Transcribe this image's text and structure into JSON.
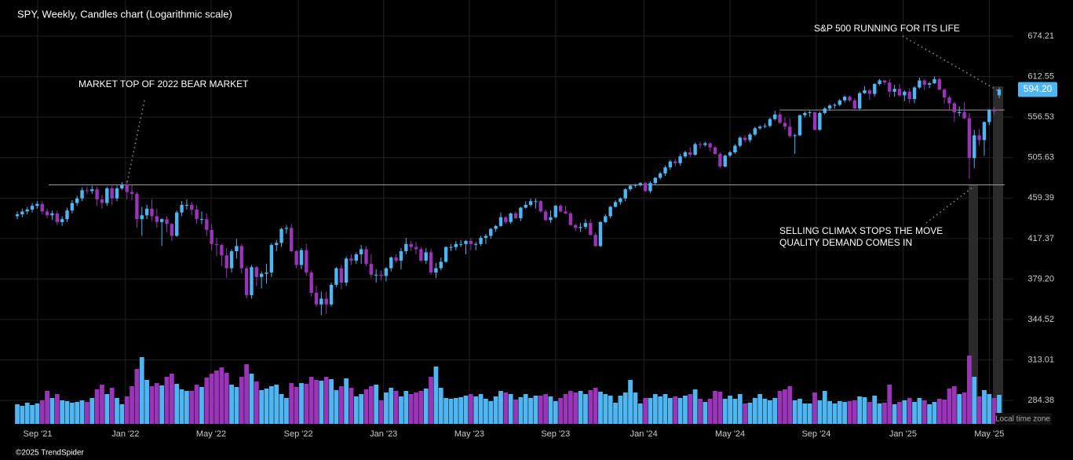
{
  "chart_data": {
    "type": "candlestick",
    "title": "SPY, Weekly, Candles chart (Logarithmic scale)",
    "footer": "©2025 TrendSpider",
    "timezone_label": "Local time zone",
    "annotations": [
      "MARKET TOP OF 2022 BEAR MARKET",
      "S&P 500 RUNNING FOR ITS LIFE",
      "SELLING CLIMAX STOPS THE MOVE",
      "QUALITY DEMAND COMES IN"
    ],
    "log_scale": true,
    "grid": true,
    "up_color": "#4fb6f2",
    "down_color": "#9a34b8",
    "ylim": [
      269,
      734.5
    ],
    "yticks": [
      674.21,
      612.55,
      556.53,
      505.63,
      459.39,
      417.37,
      {
        "value": 379.2,
        "label": "379.20"
      },
      344.52,
      313.01,
      284.38
    ],
    "xlim": [
      0,
      197
    ],
    "xticks": [
      {
        "value": 4.1,
        "label": "Sep '21"
      },
      {
        "value": 21.7,
        "label": "Jan '22"
      },
      {
        "value": 38.9,
        "label": "May '22"
      },
      {
        "value": 56.4,
        "label": "Sep '22"
      },
      {
        "value": 73.5,
        "label": "Jan '23"
      },
      {
        "value": 90.7,
        "label": "May '23"
      },
      {
        "value": 108,
        "label": "Sep '23"
      },
      {
        "value": 125.7,
        "label": "Jan '24"
      },
      {
        "value": 143,
        "label": "May '24"
      },
      {
        "value": 160.3,
        "label": "Sep '24"
      },
      {
        "value": 177.7,
        "label": "Jan '25"
      },
      {
        "value": 195,
        "label": "May '25"
      }
    ],
    "levels": [
      474,
      566
    ],
    "last_price": 594.2,
    "last_price_label": "594.20",
    "volume_lim": [
      0,
      1000
    ],
    "open": [
      440,
      442,
      445,
      447,
      451,
      453,
      445,
      441,
      443,
      434,
      437,
      446,
      454,
      459,
      468,
      467,
      469,
      458,
      454,
      470,
      459,
      470,
      474,
      466,
      464,
      437,
      441,
      448,
      440,
      434,
      437,
      432,
      420,
      444,
      452,
      452,
      447,
      437,
      437,
      426,
      412,
      411,
      401,
      389,
      405,
      410,
      389,
      365,
      390,
      381,
      384,
      385,
      411,
      413,
      427,
      428,
      405,
      392,
      406,
      385,
      367,
      357,
      362,
      357,
      374,
      389,
      376,
      398,
      396,
      402,
      407,
      393,
      383,
      383,
      382,
      389,
      399,
      396,
      405,
      412,
      409,
      407,
      396,
      404,
      385,
      389,
      395,
      409,
      409,
      412,
      412,
      415,
      412,
      412,
      418,
      420,
      427,
      430,
      439,
      434,
      443,
      438,
      449,
      452,
      456,
      456,
      445,
      436,
      439,
      451,
      445,
      443,
      431,
      428,
      429,
      433,
      421,
      410,
      434,
      440,
      450,
      455,
      459,
      469,
      473,
      474,
      476,
      467,
      476,
      482,
      487,
      494,
      501,
      499,
      507,
      512,
      509,
      522,
      521,
      523,
      518,
      510,
      495,
      508,
      512,
      520,
      530,
      527,
      534,
      542,
      544,
      545,
      554,
      560,
      549,
      544,
      532,
      533,
      559,
      562,
      563,
      540,
      562,
      568,
      572,
      573,
      579,
      584,
      579,
      568,
      589,
      593,
      588,
      602,
      607,
      604,
      591,
      595,
      586,
      591,
      581,
      597,
      607,
      601,
      603,
      609,
      594,
      583,
      575,
      563,
      563,
      555,
      505,
      533,
      527,
      550,
      566,
      586
    ],
    "high": [
      445,
      448,
      450,
      454,
      456,
      456,
      448,
      446,
      446,
      440,
      449,
      457,
      462,
      471,
      472,
      473,
      472,
      463,
      472,
      473,
      473,
      477,
      478,
      474,
      466,
      450,
      452,
      458,
      448,
      438,
      440,
      433,
      446,
      456,
      458,
      455,
      452,
      445,
      443,
      432,
      418,
      412,
      408,
      407,
      417,
      412,
      391,
      392,
      391,
      386,
      393,
      413,
      416,
      428,
      431,
      432,
      406,
      408,
      412,
      387,
      373,
      368,
      368,
      376,
      390,
      392,
      400,
      402,
      404,
      411,
      410,
      402,
      388,
      387,
      390,
      400,
      402,
      408,
      418,
      415,
      414,
      409,
      408,
      407,
      394,
      399,
      410,
      412,
      415,
      416,
      416,
      418,
      414,
      420,
      422,
      428,
      431,
      444,
      440,
      444,
      445,
      450,
      456,
      459,
      459,
      457,
      447,
      446,
      452,
      453,
      451,
      445,
      432,
      433,
      437,
      437,
      423,
      435,
      442,
      451,
      457,
      460,
      470,
      474,
      475,
      477,
      477,
      478,
      483,
      489,
      496,
      503,
      504,
      510,
      514,
      518,
      524,
      525,
      525,
      524,
      520,
      512,
      509,
      514,
      522,
      532,
      533,
      536,
      544,
      546,
      548,
      556,
      565,
      563,
      556,
      555,
      535,
      560,
      564,
      565,
      563,
      564,
      570,
      574,
      575,
      581,
      586,
      586,
      582,
      591,
      599,
      595,
      603,
      609,
      608,
      609,
      601,
      602,
      593,
      596,
      599,
      611,
      609,
      605,
      613,
      611,
      596,
      585,
      577,
      571,
      576,
      562,
      540,
      541,
      551,
      567,
      570,
      597
    ],
    "low": [
      437,
      439,
      442,
      444,
      448,
      442,
      438,
      436,
      431,
      430,
      434,
      443,
      451,
      456,
      464,
      464,
      451,
      448,
      451,
      452,
      456,
      468,
      458,
      457,
      428,
      420,
      437,
      435,
      428,
      410,
      424,
      415,
      419,
      440,
      447,
      441,
      432,
      432,
      420,
      406,
      400,
      391,
      380,
      385,
      398,
      384,
      362,
      362,
      373,
      371,
      375,
      381,
      405,
      409,
      422,
      404,
      389,
      388,
      382,
      364,
      355,
      348,
      349,
      355,
      372,
      370,
      373,
      392,
      393,
      393,
      391,
      380,
      376,
      378,
      377,
      386,
      394,
      388,
      402,
      405,
      402,
      395,
      393,
      383,
      380,
      387,
      394,
      405,
      406,
      409,
      402,
      406,
      406,
      410,
      412,
      417,
      424,
      429,
      432,
      432,
      437,
      435,
      448,
      450,
      448,
      444,
      435,
      433,
      438,
      444,
      442,
      430,
      425,
      424,
      427,
      420,
      409,
      409,
      433,
      438,
      449,
      452,
      456,
      467,
      471,
      472,
      466,
      465,
      474,
      480,
      484,
      491,
      495,
      496,
      505,
      506,
      508,
      517,
      519,
      513,
      509,
      493,
      494,
      506,
      510,
      518,
      524,
      524,
      532,
      540,
      542,
      543,
      552,
      548,
      540,
      530,
      510,
      532,
      556,
      557,
      539,
      539,
      560,
      565,
      568,
      571,
      576,
      577,
      567,
      566,
      588,
      580,
      584,
      600,
      601,
      583,
      584,
      584,
      578,
      575,
      575,
      595,
      593,
      596,
      602,
      593,
      574,
      565,
      550,
      558,
      554,
      481,
      493,
      520,
      508,
      546,
      560,
      582
    ],
    "close": [
      442,
      445,
      447,
      451,
      453,
      445,
      441,
      443,
      434,
      437,
      446,
      454,
      459,
      468,
      467,
      469,
      458,
      454,
      470,
      459,
      470,
      474,
      466,
      464,
      437,
      441,
      448,
      440,
      434,
      437,
      432,
      420,
      444,
      452,
      452,
      447,
      437,
      437,
      426,
      412,
      411,
      401,
      389,
      405,
      410,
      389,
      365,
      390,
      381,
      384,
      385,
      411,
      413,
      427,
      428,
      405,
      392,
      406,
      385,
      367,
      357,
      362,
      357,
      374,
      389,
      376,
      398,
      396,
      402,
      407,
      393,
      383,
      383,
      382,
      389,
      399,
      396,
      405,
      412,
      409,
      407,
      396,
      404,
      385,
      389,
      395,
      409,
      409,
      412,
      412,
      415,
      412,
      412,
      418,
      420,
      427,
      430,
      439,
      434,
      443,
      438,
      449,
      452,
      456,
      456,
      445,
      436,
      439,
      451,
      445,
      443,
      431,
      428,
      429,
      433,
      421,
      410,
      434,
      440,
      450,
      455,
      459,
      469,
      473,
      474,
      476,
      467,
      476,
      482,
      487,
      494,
      501,
      499,
      507,
      512,
      509,
      522,
      521,
      523,
      518,
      510,
      495,
      508,
      512,
      520,
      530,
      527,
      534,
      542,
      544,
      545,
      554,
      560,
      549,
      544,
      532,
      533,
      559,
      562,
      563,
      540,
      562,
      568,
      572,
      573,
      579,
      584,
      579,
      568,
      589,
      593,
      588,
      602,
      607,
      604,
      591,
      595,
      586,
      591,
      581,
      597,
      607,
      601,
      603,
      609,
      594,
      583,
      575,
      563,
      563,
      555,
      505,
      533,
      527,
      550,
      566,
      564,
      594
    ],
    "volume": [
      250,
      230,
      270,
      240,
      260,
      300,
      420,
      330,
      380,
      300,
      290,
      270,
      280,
      300,
      280,
      330,
      440,
      500,
      380,
      460,
      330,
      250,
      350,
      480,
      700,
      850,
      560,
      480,
      520,
      490,
      600,
      640,
      510,
      440,
      420,
      420,
      500,
      470,
      590,
      640,
      680,
      720,
      650,
      500,
      470,
      600,
      760,
      640,
      540,
      430,
      450,
      480,
      500,
      380,
      330,
      520,
      470,
      520,
      510,
      600,
      560,
      550,
      600,
      570,
      430,
      480,
      580,
      460,
      350,
      380,
      440,
      480,
      500,
      300,
      400,
      460,
      420,
      350,
      420,
      380,
      400,
      420,
      450,
      600,
      730,
      460,
      330,
      320,
      330,
      340,
      360,
      380,
      350,
      380,
      320,
      290,
      350,
      420,
      400,
      380,
      310,
      340,
      380,
      330,
      360,
      360,
      380,
      350,
      290,
      330,
      380,
      420,
      400,
      420,
      380,
      430,
      460,
      410,
      380,
      360,
      270,
      360,
      400,
      560,
      400,
      260,
      330,
      330,
      380,
      350,
      380,
      330,
      350,
      330,
      360,
      380,
      440,
      320,
      280,
      320,
      420,
      410,
      320,
      360,
      320,
      380,
      260,
      270,
      330,
      380,
      320,
      300,
      330,
      420,
      440,
      480,
      300,
      320,
      260,
      260,
      400,
      300,
      420,
      290,
      260,
      290,
      280,
      290,
      300,
      350,
      340,
      280,
      360,
      260,
      270,
      500,
      250,
      280,
      300,
      330,
      280,
      330,
      300,
      250,
      280,
      320,
      310,
      450,
      480,
      380,
      400,
      870,
      600,
      350,
      430,
      380,
      330,
      370
    ]
  }
}
